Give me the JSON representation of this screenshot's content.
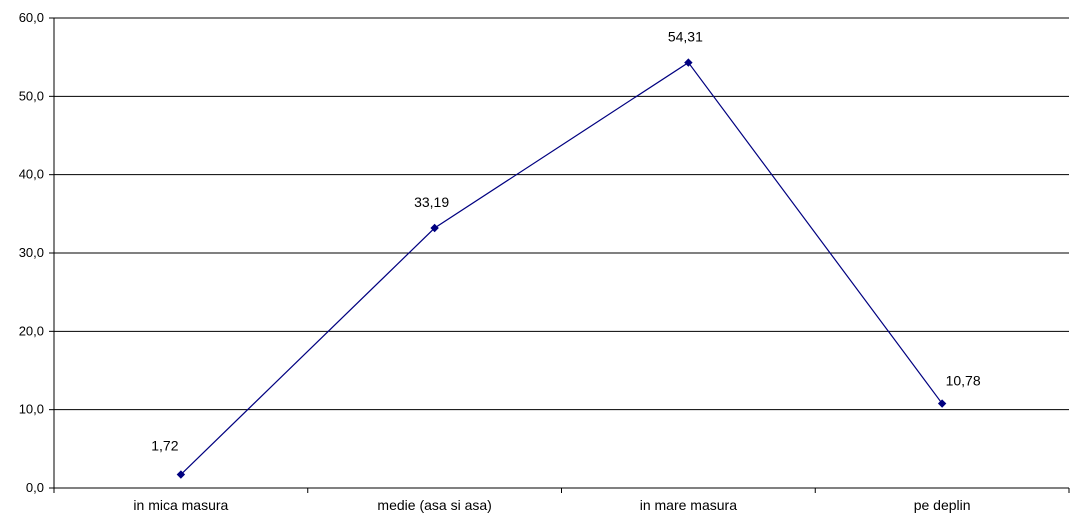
{
  "chart_data": {
    "type": "line",
    "title": "",
    "xlabel": "",
    "ylabel": "",
    "categories": [
      "in mica masura",
      "medie (asa si asa)",
      "in mare masura",
      "pe deplin"
    ],
    "series": [
      {
        "values": [
          1.72,
          33.19,
          54.31,
          10.78
        ],
        "data_labels": [
          "1,72",
          "33,19",
          "54,31",
          "10,78"
        ],
        "color": "#000080"
      }
    ],
    "ylim": [
      0,
      60
    ],
    "yticks": [
      0,
      10,
      20,
      30,
      40,
      50,
      60
    ],
    "ytick_labels": [
      "0,0",
      "10,0",
      "20,0",
      "30,0",
      "40,0",
      "50,0",
      "60,0"
    ],
    "grid": true,
    "legend": "none",
    "colors": {
      "line": "#000080",
      "marker": "#000080",
      "grid": "#000000",
      "axis": "#000000"
    }
  }
}
